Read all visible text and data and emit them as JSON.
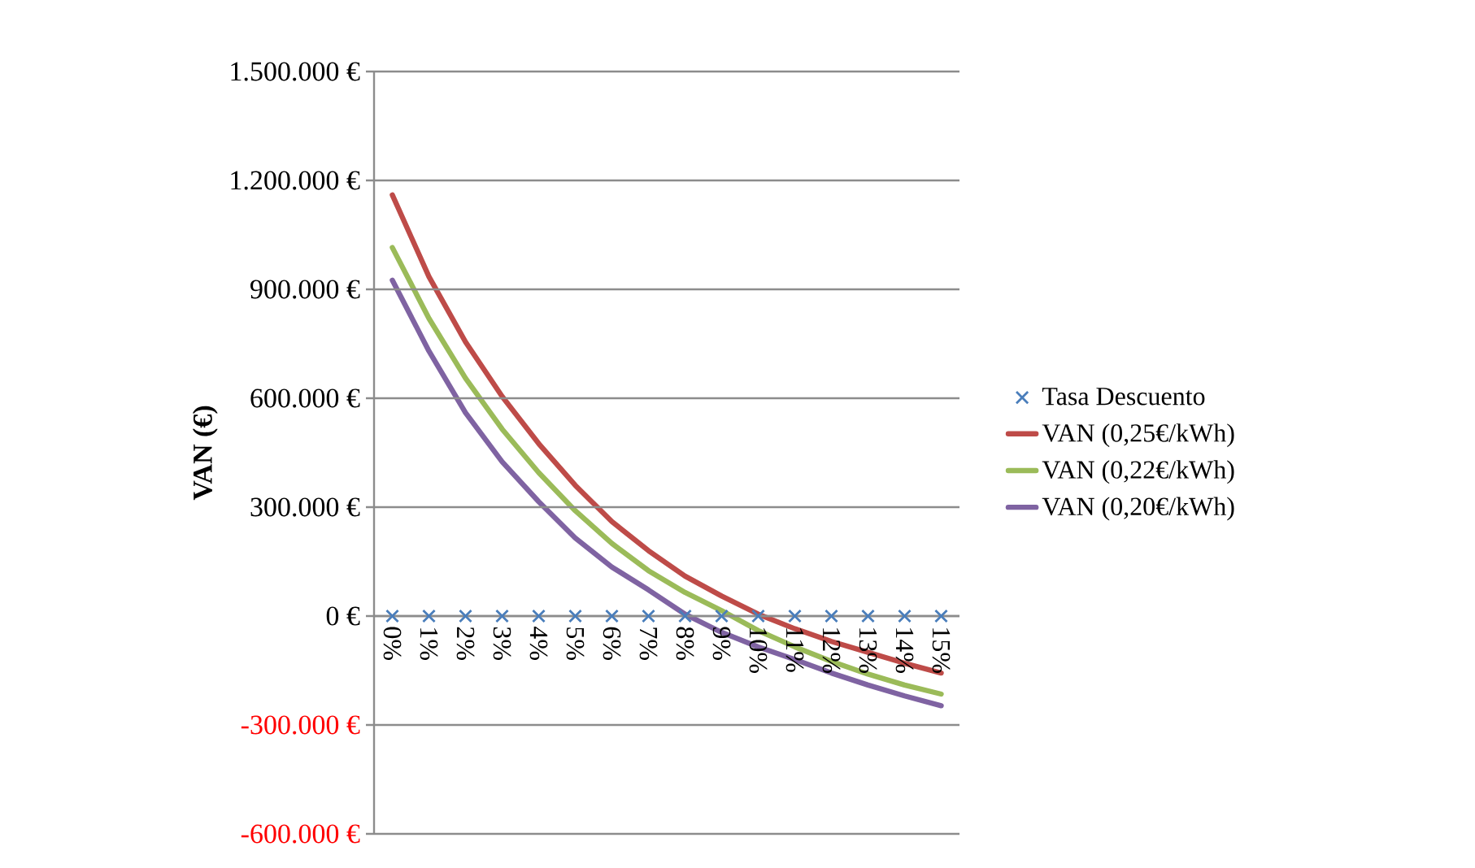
{
  "chart_data": {
    "type": "line",
    "ylabel": "VAN (€)",
    "categories": [
      "0%",
      "1%",
      "2%",
      "3%",
      "4%",
      "5%",
      "6%",
      "7%",
      "8%",
      "9%",
      "10%",
      "11%",
      "12%",
      "13%",
      "14%",
      "15%"
    ],
    "series": [
      {
        "name": "Tasa Descuento",
        "type": "scatter",
        "marker": "cross",
        "color": "#4a7ebb",
        "values": [
          0,
          0,
          0,
          0,
          0,
          0,
          0,
          0,
          0,
          0,
          0,
          0,
          0,
          0,
          0,
          0
        ]
      },
      {
        "name": "VAN (0,25€/kWh)",
        "color": "#be4b48",
        "values": [
          1160000,
          935000,
          755000,
          605000,
          475000,
          360000,
          260000,
          180000,
          110000,
          55000,
          5000,
          -35000,
          -70000,
          -100000,
          -130000,
          -157000
        ]
      },
      {
        "name": "VAN (0,22€/kWh)",
        "color": "#9bbb59",
        "values": [
          1015000,
          820000,
          655000,
          515000,
          395000,
          290000,
          200000,
          125000,
          65000,
          15000,
          -40000,
          -85000,
          -125000,
          -160000,
          -190000,
          -215000
        ]
      },
      {
        "name": "VAN (0,20€/kWh)",
        "color": "#7f63a2",
        "values": [
          925000,
          730000,
          560000,
          425000,
          315000,
          215000,
          135000,
          72000,
          5000,
          -45000,
          -85000,
          -120000,
          -157000,
          -190000,
          -220000,
          -247000
        ]
      }
    ],
    "ylim": [
      -600000,
      1500000
    ],
    "yticks": [
      {
        "value": -600000,
        "label": "-600.000 €"
      },
      {
        "value": -300000,
        "label": "-300.000 €"
      },
      {
        "value": 0,
        "label": "0 €"
      },
      {
        "value": 300000,
        "label": "300.000 €"
      },
      {
        "value": 600000,
        "label": "600.000 €"
      },
      {
        "value": 900000,
        "label": "900.000 €"
      },
      {
        "value": 1200000,
        "label": "1.200.000 €"
      },
      {
        "value": 1500000,
        "label": "1.500.000 €"
      }
    ],
    "grid": "y",
    "legend": "right"
  }
}
